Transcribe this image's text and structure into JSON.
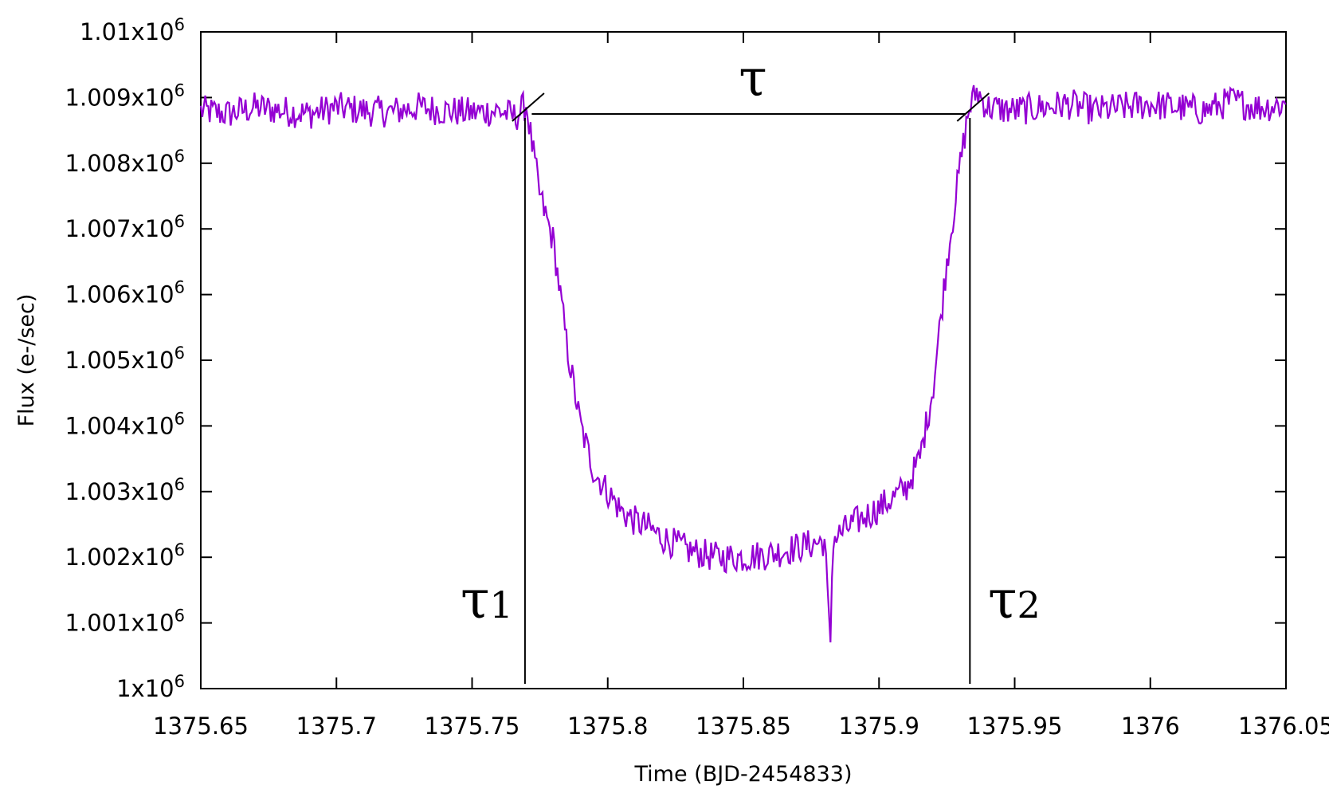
{
  "chart_data": {
    "type": "line",
    "xlabel": "Time (BJD-2454833)",
    "ylabel": "Flux (e-/sec)",
    "xlim": [
      1375.65,
      1376.05
    ],
    "ylim": [
      1000000,
      1010000
    ],
    "x_ticks": [
      1375.65,
      1375.7,
      1375.75,
      1375.8,
      1375.85,
      1375.9,
      1375.95,
      1376,
      1376.05
    ],
    "x_tick_labels": [
      "1375.65",
      "1375.7",
      "1375.75",
      "1375.8",
      "1375.85",
      "1375.9",
      "1375.95",
      "1376",
      "1376.05"
    ],
    "y_ticks": [
      1000000,
      1001000,
      1002000,
      1003000,
      1004000,
      1005000,
      1006000,
      1007000,
      1008000,
      1009000,
      1010000
    ],
    "y_tick_mantissas": [
      "1",
      "1.001",
      "1.002",
      "1.003",
      "1.004",
      "1.005",
      "1.006",
      "1.007",
      "1.008",
      "1.009",
      "1.01"
    ],
    "y_tick_times": "x10",
    "y_tick_exponent": "6",
    "grid": false,
    "line_color": "#9400D3",
    "series": [
      {
        "x": [
          1375.65,
          1375.66,
          1375.67,
          1375.68,
          1375.69,
          1375.7,
          1375.71,
          1375.72,
          1375.73,
          1375.74,
          1375.75,
          1375.76,
          1375.766,
          1375.77,
          1375.772,
          1375.775,
          1375.78,
          1375.785,
          1375.79,
          1375.795,
          1375.8,
          1375.805,
          1375.81,
          1375.815,
          1375.82,
          1375.825,
          1375.83,
          1375.84,
          1375.85,
          1375.86,
          1375.87,
          1375.88,
          1375.882,
          1375.883,
          1375.884,
          1375.89,
          1375.9,
          1375.91,
          1375.915,
          1375.92,
          1375.925,
          1375.93,
          1375.933,
          1375.936,
          1375.94,
          1375.95,
          1375.96,
          1375.97,
          1375.98,
          1375.99,
          1376.0,
          1376.01,
          1376.02,
          1376.03,
          1376.04,
          1376.05
        ],
        "y": [
          1008800,
          1008750,
          1008850,
          1008800,
          1008750,
          1008850,
          1008800,
          1008780,
          1008850,
          1008800,
          1008770,
          1008800,
          1008700,
          1008900,
          1008300,
          1007500,
          1006800,
          1005200,
          1004000,
          1003300,
          1003000,
          1002700,
          1002550,
          1002450,
          1002300,
          1002200,
          1002100,
          1002000,
          1002000,
          1002050,
          1002150,
          1002250,
          1000600,
          1002300,
          1002300,
          1002500,
          1002750,
          1003050,
          1003500,
          1004600,
          1006500,
          1008000,
          1008800,
          1009100,
          1008850,
          1008800,
          1008850,
          1008900,
          1008800,
          1008850,
          1008900,
          1008850,
          1008800,
          1008950,
          1008850,
          1008900
        ]
      }
    ],
    "annotations": {
      "tau": "τ",
      "tau1_symbol": "τ",
      "tau1_subscript": "1",
      "tau2_symbol": "τ",
      "tau2_subscript": "2",
      "tau1_x": 1375.7695,
      "tau2_x": 1375.9335,
      "tau_line_y": 1008750,
      "tau_line_x": [
        1375.772,
        1375.932
      ]
    }
  }
}
